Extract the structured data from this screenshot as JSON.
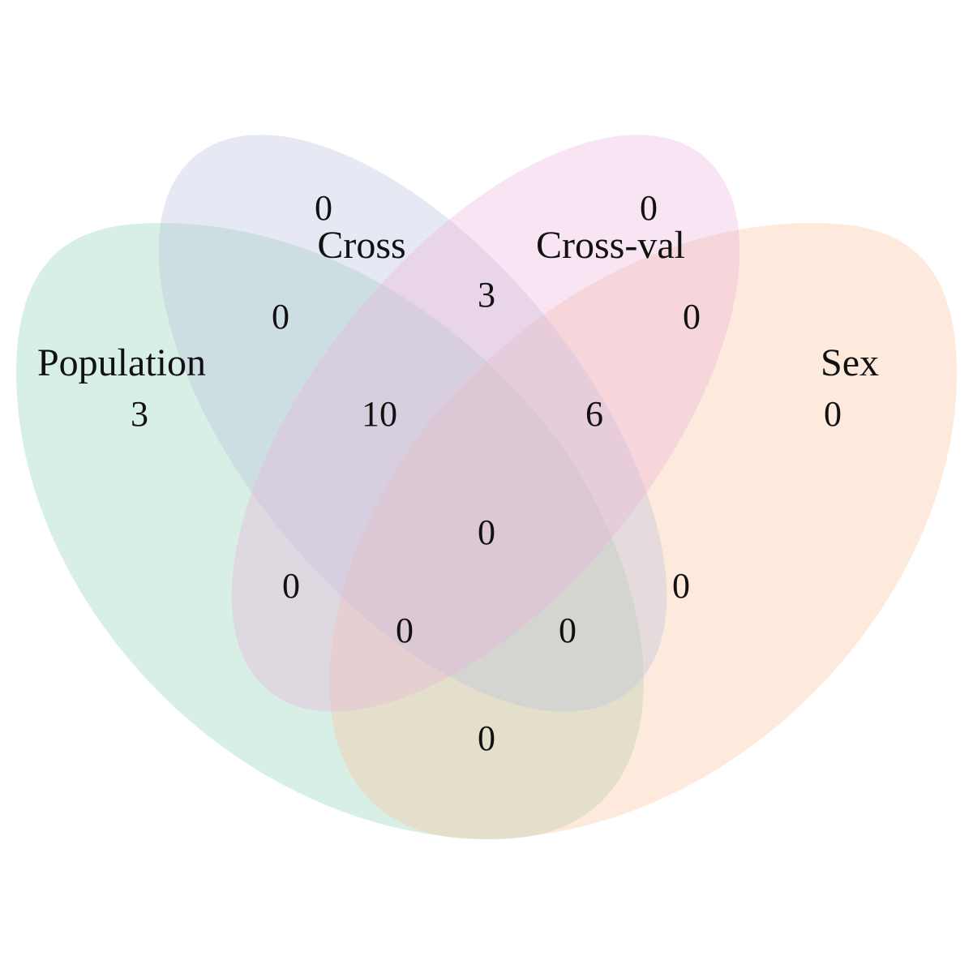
{
  "chart_data": {
    "type": "venn",
    "sets": [
      {
        "name": "Population",
        "color": "#8fd1b5"
      },
      {
        "name": "Cross",
        "color": "#b7c1de"
      },
      {
        "name": "Cross-val",
        "color": "#ecb2db"
      },
      {
        "name": "Sex",
        "color": "#fbc29c"
      }
    ],
    "regions": [
      {
        "sets": [
          "Population"
        ],
        "count": "3"
      },
      {
        "sets": [
          "Cross"
        ],
        "count": "0"
      },
      {
        "sets": [
          "Cross-val"
        ],
        "count": "0"
      },
      {
        "sets": [
          "Sex"
        ],
        "count": "0"
      },
      {
        "sets": [
          "Population",
          "Cross"
        ],
        "count": "0"
      },
      {
        "sets": [
          "Cross",
          "Cross-val"
        ],
        "count": "3"
      },
      {
        "sets": [
          "Cross-val",
          "Sex"
        ],
        "count": "0"
      },
      {
        "sets": [
          "Population",
          "Cross",
          "Cross-val"
        ],
        "count": "10"
      },
      {
        "sets": [
          "Cross",
          "Cross-val",
          "Sex"
        ],
        "count": "6"
      },
      {
        "sets": [
          "Population",
          "Cross",
          "Cross-val",
          "Sex"
        ],
        "count": "0"
      },
      {
        "sets": [
          "Population",
          "Cross-val"
        ],
        "count": "0"
      },
      {
        "sets": [
          "Cross",
          "Sex"
        ],
        "count": "0"
      },
      {
        "sets": [
          "Population",
          "Cross-val",
          "Sex"
        ],
        "count": "0"
      },
      {
        "sets": [
          "Population",
          "Cross",
          "Sex"
        ],
        "count": "0"
      },
      {
        "sets": [
          "Population",
          "Sex"
        ],
        "count": "0"
      }
    ]
  }
}
